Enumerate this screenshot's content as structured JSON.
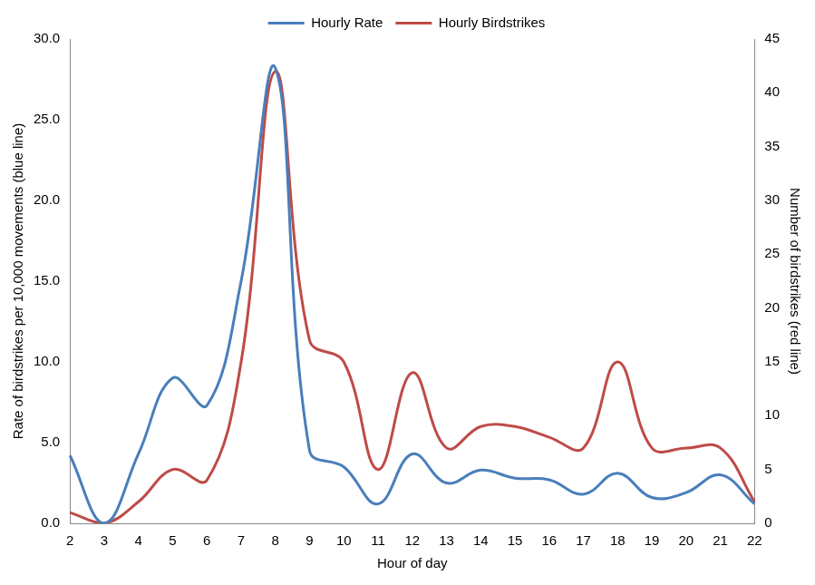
{
  "chart_data": {
    "type": "line",
    "x_label": "Hour of day",
    "y_label": "Rate of birdstrikes per 10,000 movements (blue line)",
    "y2_label": "Number of birdstrikes (red line)",
    "categories": [
      2,
      3,
      4,
      5,
      6,
      7,
      8,
      9,
      10,
      11,
      12,
      13,
      14,
      15,
      16,
      17,
      18,
      19,
      20,
      21,
      22
    ],
    "series": [
      {
        "name": "Hourly Rate",
        "color": "#4a7ebb",
        "axis": "y",
        "marker": "none",
        "line_style": "solid",
        "values": [
          4.2,
          0.0,
          4.3,
          9.0,
          7.3,
          15.0,
          28.2,
          4.5,
          3.5,
          1.2,
          4.3,
          2.5,
          3.3,
          2.8,
          2.7,
          1.8,
          3.1,
          1.6,
          1.9,
          3.0,
          1.2
        ]
      },
      {
        "name": "Hourly Birdstrikes",
        "color": "#be4b48",
        "axis": "y2",
        "marker": "none",
        "line_style": "solid",
        "values": [
          1,
          0,
          2,
          5,
          4,
          15,
          42,
          17,
          15,
          5,
          14,
          7,
          9,
          9,
          8,
          7,
          15,
          7,
          7,
          7,
          2
        ]
      }
    ],
    "ylim": [
      0,
      30
    ],
    "yticks": [
      {
        "value": 0,
        "label": "0.0"
      },
      {
        "value": 5,
        "label": "5.0"
      },
      {
        "value": 10,
        "label": "10.0"
      },
      {
        "value": 15,
        "label": "15.0"
      },
      {
        "value": 20,
        "label": "20.0"
      },
      {
        "value": 25,
        "label": "25.0"
      },
      {
        "value": 30,
        "label": "30.0"
      }
    ],
    "y2lim": [
      0,
      45
    ],
    "y2ticks": [
      0,
      5,
      10,
      15,
      20,
      25,
      30,
      35,
      40,
      45
    ],
    "grid": false,
    "legend": "top"
  }
}
